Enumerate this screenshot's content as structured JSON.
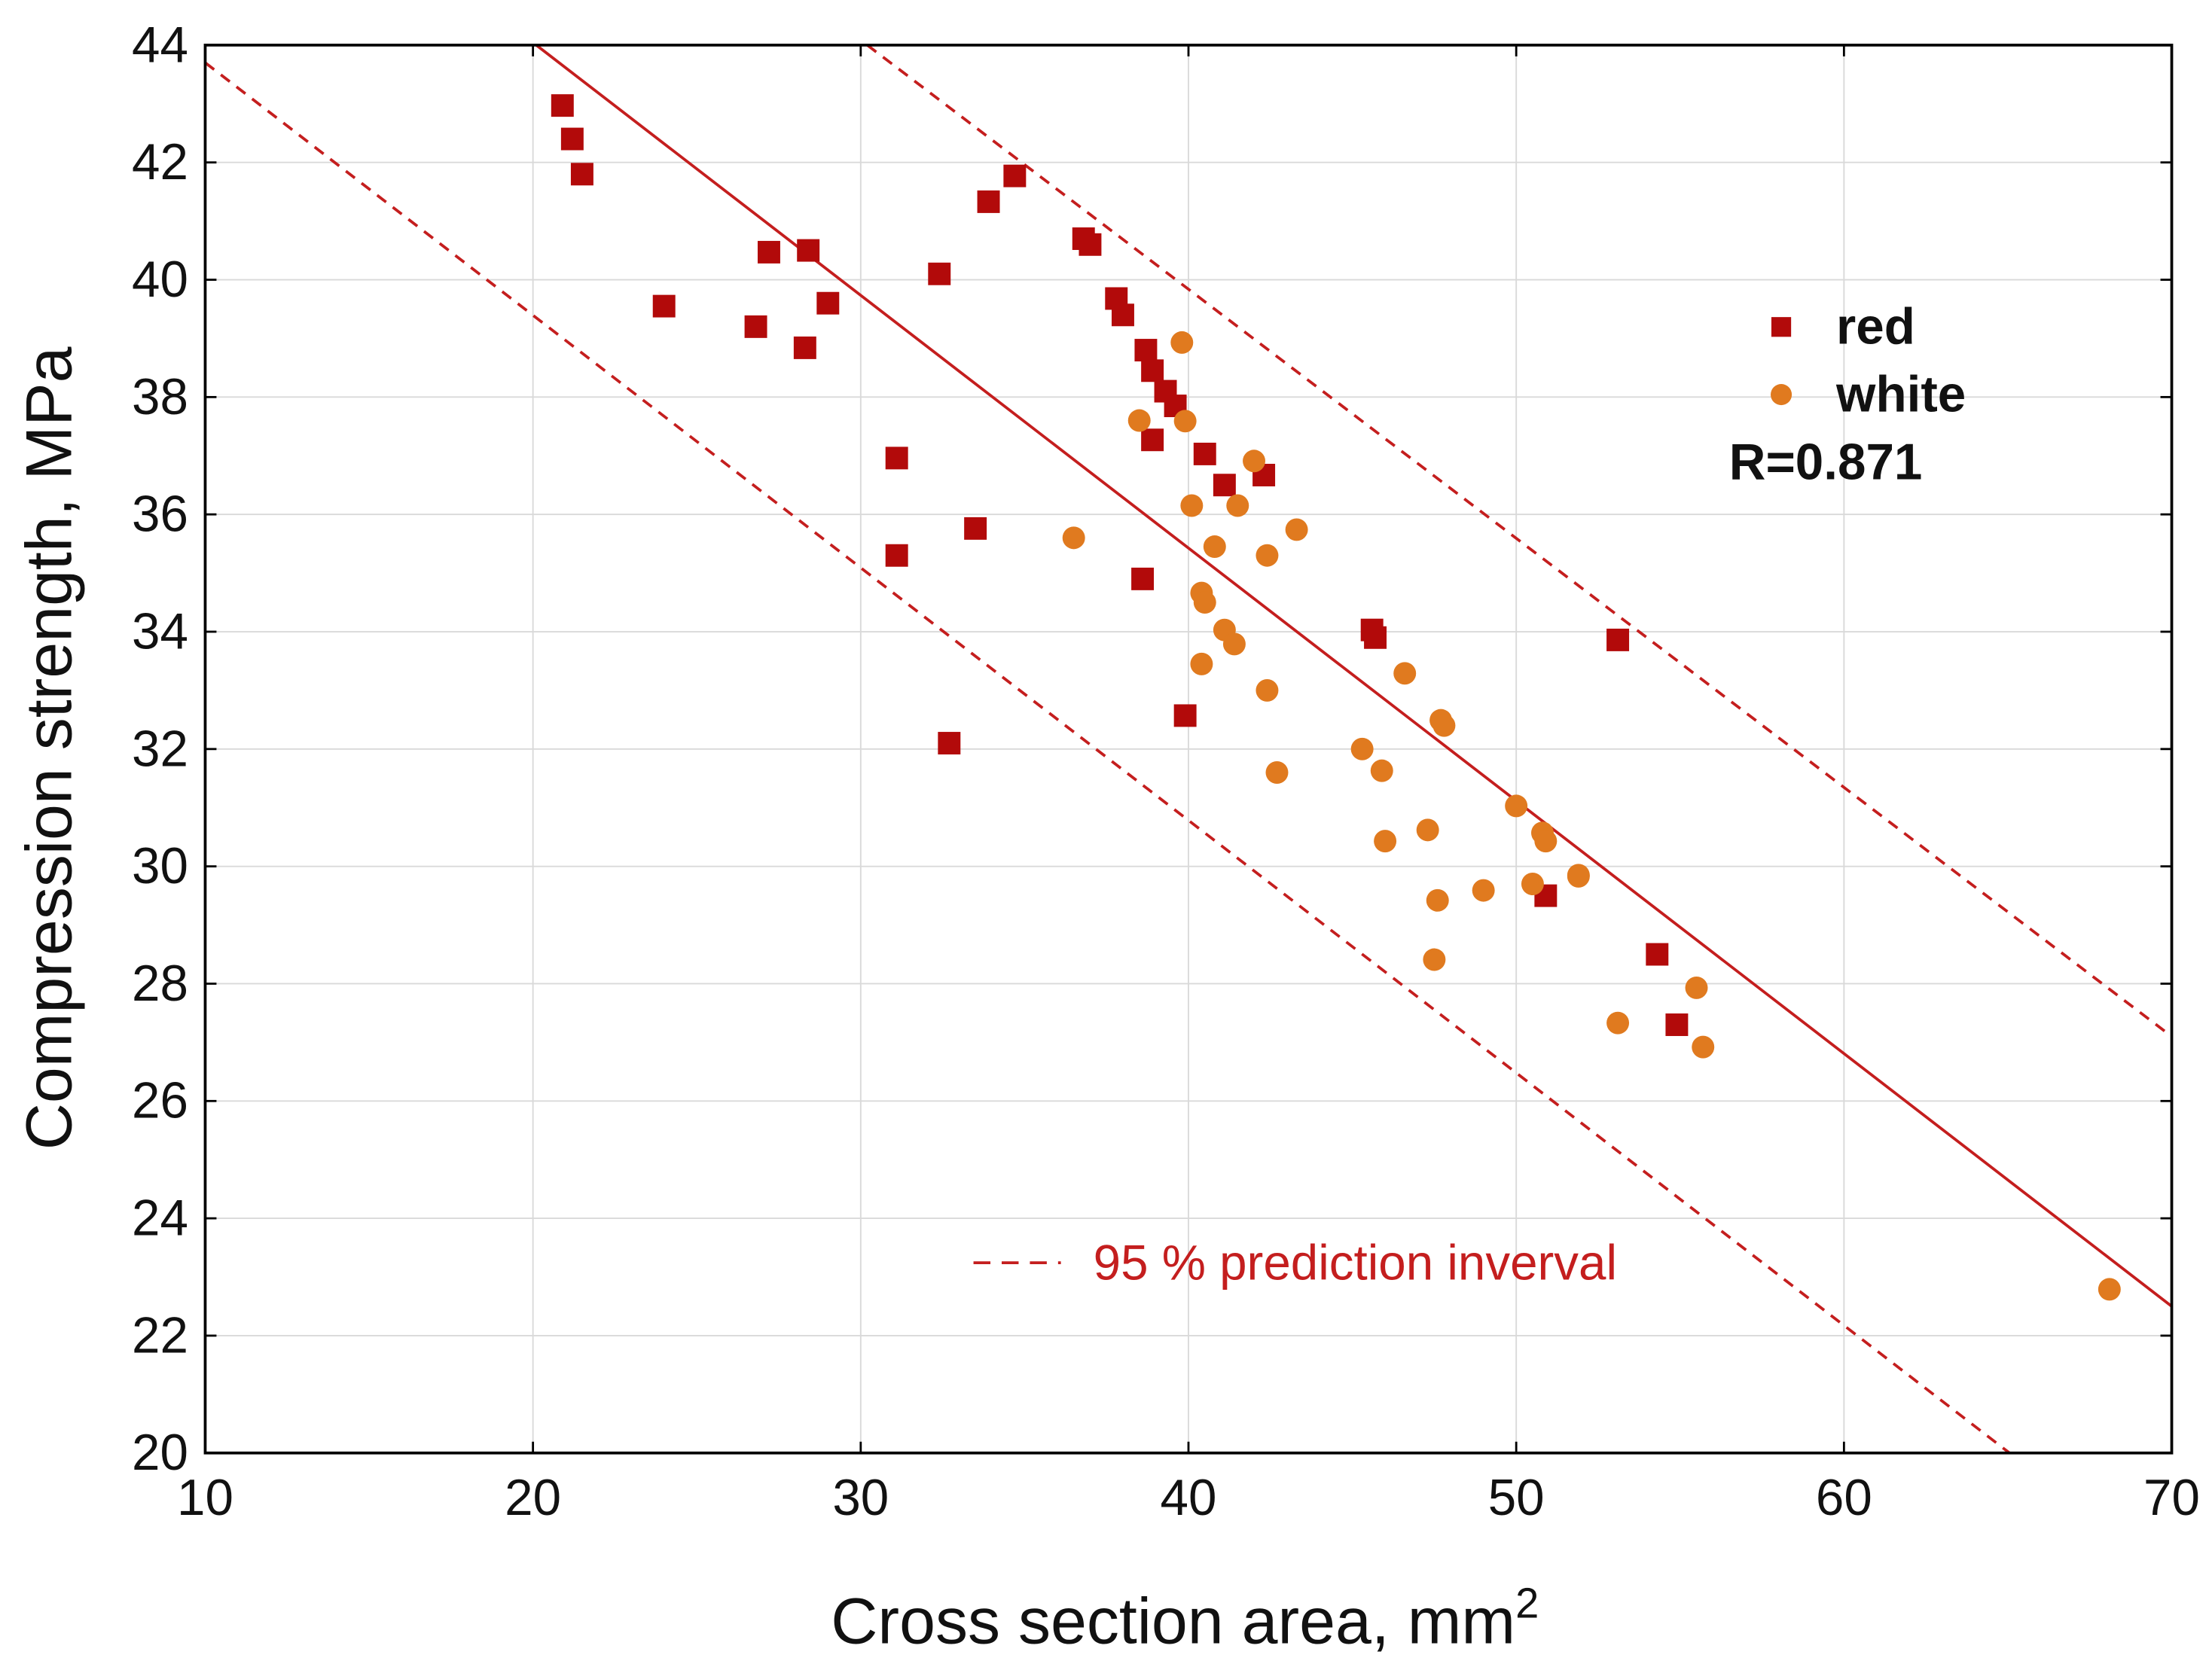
{
  "chart_data": {
    "type": "scatter",
    "title": "",
    "xlabel": "Cross section area, mm",
    "xlabel_superscript": "2",
    "ylabel": "Compression strength, MPa",
    "xlim": [
      10,
      70
    ],
    "ylim": [
      20,
      44
    ],
    "xticks": [
      10,
      20,
      30,
      40,
      50,
      60,
      70
    ],
    "yticks": [
      20,
      22,
      24,
      26,
      28,
      30,
      32,
      34,
      36,
      38,
      40,
      42,
      44
    ],
    "grid": true,
    "legend_position": "top-right",
    "annotation": "R=0.871",
    "pi_label": "95 % prediction inverval",
    "line_color": "#C41E1E",
    "series": [
      {
        "name": "red",
        "marker": "square",
        "color": "#B20A0A",
        "points": [
          [
            20.9,
            42.97
          ],
          [
            21.2,
            42.4
          ],
          [
            21.5,
            41.8
          ],
          [
            24.0,
            39.55
          ],
          [
            26.8,
            39.2
          ],
          [
            27.2,
            40.47
          ],
          [
            28.4,
            40.5
          ],
          [
            28.3,
            38.84
          ],
          [
            29.0,
            39.6
          ],
          [
            31.1,
            36.96
          ],
          [
            31.1,
            35.3
          ],
          [
            32.4,
            40.1
          ],
          [
            32.7,
            32.1
          ],
          [
            33.5,
            35.76
          ],
          [
            33.9,
            41.33
          ],
          [
            34.7,
            41.77
          ],
          [
            36.8,
            40.7
          ],
          [
            37.0,
            40.6
          ],
          [
            37.8,
            39.68
          ],
          [
            38.0,
            39.4
          ],
          [
            38.6,
            34.9
          ],
          [
            38.7,
            38.8
          ],
          [
            38.9,
            38.45
          ],
          [
            38.9,
            37.27
          ],
          [
            39.3,
            38.1
          ],
          [
            39.6,
            37.85
          ],
          [
            39.9,
            32.57
          ],
          [
            40.5,
            37.03
          ],
          [
            41.1,
            36.5
          ],
          [
            42.3,
            36.67
          ],
          [
            45.6,
            34.03
          ],
          [
            45.7,
            33.9
          ],
          [
            50.9,
            29.5
          ],
          [
            53.1,
            33.86
          ],
          [
            54.3,
            28.5
          ],
          [
            54.9,
            27.3
          ]
        ]
      },
      {
        "name": "white",
        "marker": "circle",
        "color": "#E07A1F",
        "points": [
          [
            36.5,
            35.6
          ],
          [
            38.5,
            37.6
          ],
          [
            39.8,
            38.93
          ],
          [
            39.9,
            37.59
          ],
          [
            40.1,
            36.15
          ],
          [
            40.4,
            34.66
          ],
          [
            40.5,
            34.5
          ],
          [
            40.4,
            33.45
          ],
          [
            40.8,
            35.45
          ],
          [
            41.1,
            34.03
          ],
          [
            41.4,
            33.79
          ],
          [
            41.5,
            36.15
          ],
          [
            42.0,
            36.91
          ],
          [
            42.4,
            33.0
          ],
          [
            42.4,
            35.3
          ],
          [
            42.7,
            31.6
          ],
          [
            43.3,
            35.74
          ],
          [
            45.3,
            32.0
          ],
          [
            45.9,
            31.63
          ],
          [
            46.0,
            30.43
          ],
          [
            46.6,
            33.29
          ],
          [
            47.3,
            30.62
          ],
          [
            47.5,
            28.41
          ],
          [
            47.6,
            29.42
          ],
          [
            47.7,
            32.49
          ],
          [
            47.8,
            32.4
          ],
          [
            49.0,
            29.59
          ],
          [
            50.0,
            31.03
          ],
          [
            50.5,
            29.7
          ],
          [
            50.8,
            30.57
          ],
          [
            50.9,
            30.43
          ],
          [
            51.9,
            29.85
          ],
          [
            51.9,
            29.83
          ],
          [
            53.1,
            27.33
          ],
          [
            55.5,
            27.93
          ],
          [
            55.7,
            26.92
          ],
          [
            68.1,
            22.79
          ]
        ]
      }
    ],
    "regression_line": [
      [
        20.1,
        44.0
      ],
      [
        70,
        22.5
      ]
    ],
    "prediction_interval_upper": [
      [
        30.2,
        44.0
      ],
      [
        70,
        27.1
      ]
    ],
    "prediction_interval_lower": [
      [
        10,
        43.7
      ],
      [
        65.05,
        20.0
      ]
    ]
  }
}
